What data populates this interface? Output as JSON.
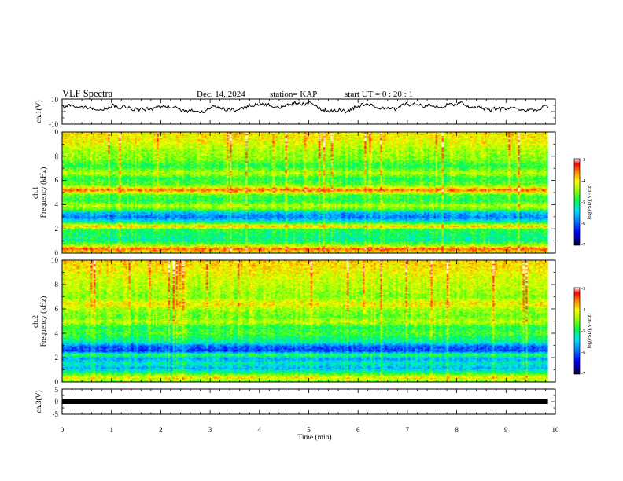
{
  "chart_data": {
    "type": "heatmap",
    "header": {
      "title": "VLF Spectra",
      "date": "Dec. 14, 2024",
      "station": "station= KAP",
      "start_ut": "start  UT =   0 : 20 : 1"
    },
    "x_axis": {
      "label": "Time  (min)",
      "range": [
        0,
        10
      ],
      "ticks": [
        "0",
        "1",
        "2",
        "3",
        "4",
        "5",
        "6",
        "7",
        "8",
        "9",
        "10"
      ],
      "data_end": 9.85
    },
    "panels": [
      {
        "id": "ch1-waveform",
        "type": "line",
        "ylabel": "ch.1(V)",
        "ylim": [
          -10,
          10
        ],
        "ytick_labels": [
          "10",
          "-10"
        ],
        "baseline": 3.5,
        "amplitude": 4
      },
      {
        "id": "ch1-spectrogram",
        "type": "heatmap",
        "ylabel": "ch.1",
        "ylabel2": "Frequency  (kHz)",
        "ylim": [
          0,
          10
        ],
        "ytick_labels": [
          "0",
          "2",
          "4",
          "6",
          "8",
          "10"
        ],
        "colorbar_label": "log(PSD)(V²/Hz)",
        "colorbar_range": [
          -7,
          -3
        ],
        "colorbar_ticks": [
          "-3",
          "-4",
          "-5",
          "-6",
          "-7"
        ],
        "band_profile": [
          {
            "f": 0.0,
            "v": -4.2
          },
          {
            "f": 0.3,
            "v": -3.4
          },
          {
            "f": 0.6,
            "v": -4.4
          },
          {
            "f": 1.0,
            "v": -5.1
          },
          {
            "f": 1.5,
            "v": -5.0
          },
          {
            "f": 1.9,
            "v": -4.9
          },
          {
            "f": 2.2,
            "v": -3.8
          },
          {
            "f": 2.5,
            "v": -5.0
          },
          {
            "f": 2.9,
            "v": -5.9
          },
          {
            "f": 3.3,
            "v": -5.6
          },
          {
            "f": 3.6,
            "v": -4.7
          },
          {
            "f": 3.9,
            "v": -4.3
          },
          {
            "f": 4.3,
            "v": -4.9
          },
          {
            "f": 4.8,
            "v": -4.7
          },
          {
            "f": 5.2,
            "v": -3.5
          },
          {
            "f": 5.6,
            "v": -4.6
          },
          {
            "f": 6.2,
            "v": -4.9
          },
          {
            "f": 6.6,
            "v": -4.3
          },
          {
            "f": 7.2,
            "v": -4.9
          },
          {
            "f": 7.8,
            "v": -4.5
          },
          {
            "f": 8.5,
            "v": -4.4
          },
          {
            "f": 9.2,
            "v": -4.1
          },
          {
            "f": 10.0,
            "v": -4.0
          }
        ]
      },
      {
        "id": "ch2-spectrogram",
        "type": "heatmap",
        "ylabel": "ch.2",
        "ylabel2": "Frequency  (kHz)",
        "ylim": [
          0,
          10
        ],
        "ytick_labels": [
          "0",
          "2",
          "4",
          "6",
          "8",
          "10"
        ],
        "colorbar_label": "log(PSD)(V²/Hz)",
        "colorbar_range": [
          -7,
          -3
        ],
        "colorbar_ticks": [
          "-3",
          "-4",
          "-5",
          "-6",
          "-7"
        ],
        "band_profile": [
          {
            "f": 0.0,
            "v": -4.6
          },
          {
            "f": 0.3,
            "v": -4.0
          },
          {
            "f": 0.7,
            "v": -4.9
          },
          {
            "f": 1.1,
            "v": -5.6
          },
          {
            "f": 1.5,
            "v": -5.2
          },
          {
            "f": 1.9,
            "v": -5.7
          },
          {
            "f": 2.2,
            "v": -4.8
          },
          {
            "f": 2.5,
            "v": -6.1
          },
          {
            "f": 2.9,
            "v": -6.0
          },
          {
            "f": 3.3,
            "v": -5.1
          },
          {
            "f": 3.6,
            "v": -5.0
          },
          {
            "f": 4.0,
            "v": -4.7
          },
          {
            "f": 4.5,
            "v": -4.9
          },
          {
            "f": 4.9,
            "v": -4.3
          },
          {
            "f": 5.4,
            "v": -4.6
          },
          {
            "f": 6.0,
            "v": -4.4
          },
          {
            "f": 6.4,
            "v": -4.0
          },
          {
            "f": 7.0,
            "v": -4.5
          },
          {
            "f": 7.8,
            "v": -4.3
          },
          {
            "f": 8.6,
            "v": -4.2
          },
          {
            "f": 9.3,
            "v": -4.0
          },
          {
            "f": 10.0,
            "v": -3.9
          }
        ]
      },
      {
        "id": "ch3-waveform",
        "type": "line",
        "ylabel": "ch.3(V)",
        "ylim": [
          -5,
          5
        ],
        "ytick_labels": [
          "5",
          "0",
          "-5"
        ],
        "baseline": 0,
        "amplitude": 0.3
      }
    ]
  }
}
